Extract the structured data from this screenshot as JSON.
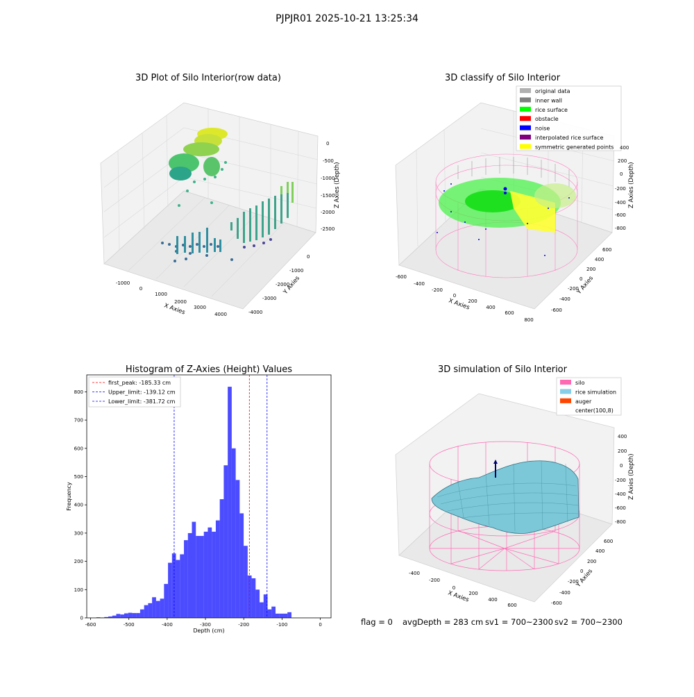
{
  "figure": {
    "suptitle": "PJPJR01 2025-10-21 13:25:34",
    "status": {
      "flag": "flag = 0",
      "avg_depth": "avgDepth = 283 cm",
      "sv1": "sv1 = 700~2300",
      "sv2": "sv2 = 700~2300"
    }
  },
  "panels": {
    "raw": {
      "title": "3D Plot of Silo Interior(row data)",
      "xlabel": "X Axies",
      "ylabel": "Y Axies",
      "zlabel": "Z Axies (Depth)",
      "xticks": [
        "-1000",
        "0",
        "1000",
        "2000",
        "3000",
        "4000"
      ],
      "yticks": [
        "0",
        "-1000",
        "-2000",
        "-3000",
        "-4000"
      ],
      "zticks": [
        "0",
        "-500",
        "-1000",
        "-1500",
        "-2000",
        "-2500"
      ]
    },
    "classify": {
      "title": "3D classify of Silo Interior",
      "xlabel": "X Axies",
      "ylabel": "Y Axies",
      "zlabel": "Z Axies (Depth)",
      "xticks": [
        "-600",
        "-400",
        "-200",
        "0",
        "200",
        "400",
        "600",
        "800"
      ],
      "yticks": [
        "600",
        "400",
        "200",
        "0",
        "-200",
        "-400",
        "-600"
      ],
      "zticks": [
        "400",
        "200",
        "0",
        "-200",
        "-400",
        "-600",
        "-800"
      ],
      "legend": [
        {
          "label": "original data",
          "color": "#b0b0b0"
        },
        {
          "label": "inner wall",
          "color": "#808080"
        },
        {
          "label": "rice surface",
          "color": "#00ff00"
        },
        {
          "label": "obstacle",
          "color": "#ff0000"
        },
        {
          "label": "noise",
          "color": "#0000ff"
        },
        {
          "label": "interpolated rice surface",
          "color": "#800080"
        },
        {
          "label": "symmetric generated points",
          "color": "#ffff00"
        }
      ]
    },
    "simulation": {
      "title": "3D simulation of Silo Interior",
      "xlabel": "X Axies",
      "ylabel": "Y Axies",
      "zlabel": "Z Axies (Depth)",
      "xticks": [
        "-400",
        "-200",
        "0",
        "200",
        "400",
        "600"
      ],
      "yticks": [
        "600",
        "400",
        "200",
        "0",
        "-200",
        "-400",
        "-600"
      ],
      "zticks": [
        "400",
        "200",
        "0",
        "-200",
        "-400",
        "-600",
        "-800"
      ],
      "legend": [
        {
          "label": "silo",
          "color": "#ff69b4"
        },
        {
          "label": "rice simulation",
          "color": "#87ceeb"
        },
        {
          "label": "auger",
          "color": "#ff4500"
        },
        {
          "label": "center(100,8)",
          "color": "none"
        }
      ]
    }
  },
  "chart_data": {
    "type": "bar",
    "title": "Histogram of Z-Axies (Height) Values",
    "xlabel": "Depth (cm)",
    "ylabel": "Frequency",
    "xlim": [
      -610,
      28
    ],
    "ylim": [
      0,
      860
    ],
    "xticks": [
      -600,
      -500,
      -400,
      -300,
      -200,
      -100,
      0
    ],
    "yticks": [
      0,
      100,
      200,
      300,
      400,
      500,
      600,
      700,
      800
    ],
    "bar_color": "#0000ff",
    "bin_start": -585,
    "bin_width": 10.4,
    "values": [
      2,
      1,
      3,
      5,
      8,
      14,
      12,
      16,
      18,
      17,
      17,
      30,
      45,
      52,
      73,
      60,
      68,
      120,
      195,
      228,
      205,
      225,
      275,
      300,
      340,
      290,
      290,
      305,
      320,
      305,
      345,
      420,
      540,
      818,
      600,
      488,
      370,
      255,
      150,
      140,
      100,
      55,
      83,
      30,
      40,
      15,
      15,
      15,
      20
    ],
    "vlines": [
      {
        "label": "first_peak: -185.33 cm",
        "x": -185.33,
        "color": "#ff0000"
      },
      {
        "label": "Upper_limit: -139.12 cm",
        "x": -139.12,
        "color": "#0000ff"
      },
      {
        "label": "Lower_limit: -381.72 cm",
        "x": -381.72,
        "color": "#0000ff"
      }
    ],
    "legend_position": "upper-left"
  }
}
